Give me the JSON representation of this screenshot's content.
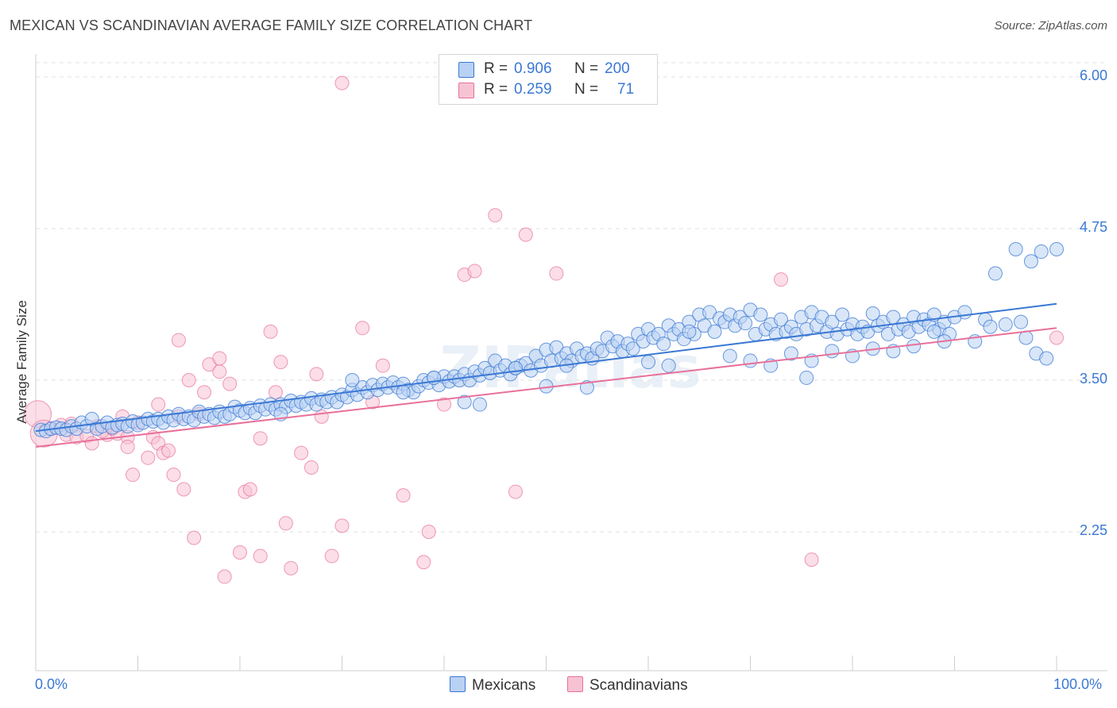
{
  "title": "MEXICAN VS SCANDINAVIAN AVERAGE FAMILY SIZE CORRELATION CHART",
  "source": "Source: ZipAtlas.com",
  "watermark": "ZIPatlas",
  "colors": {
    "blue": "#3a78d4",
    "blue_fill": "#b9d1f2",
    "pink": "#e8709a",
    "pink_fill": "#f7c3d3",
    "grid": "#dddddd"
  },
  "legend": {
    "rows": [
      {
        "r_label": "R =",
        "r_value": "0.906",
        "n_label": "N =",
        "n_value": "200"
      },
      {
        "r_label": "R =",
        "r_value": "0.259",
        "n_label": "N =",
        "n_value": "71"
      }
    ]
  },
  "bottom_legend": [
    "Mexicans",
    "Scandinavians"
  ],
  "chart_data": {
    "type": "scatter",
    "title": "MEXICAN VS SCANDINAVIAN AVERAGE FAMILY SIZE CORRELATION CHART",
    "xlabel": "",
    "ylabel": "Average Family Size",
    "x_tick_labels": [
      "0.0%",
      "100.0%"
    ],
    "y_tick_labels": [
      "6.00",
      "4.75",
      "3.50",
      "2.25"
    ],
    "y_ticks": [
      6.0,
      4.75,
      3.5,
      2.25
    ],
    "xlim": [
      0,
      100
    ],
    "ylim": [
      1.0,
      6.1
    ],
    "grid": true,
    "legend_position": "top-center",
    "series": [
      {
        "name": "Mexicans",
        "color": "#3a78d4",
        "trend": {
          "x": [
            0,
            100
          ],
          "y": [
            3.08,
            4.13
          ]
        },
        "points": [
          [
            0.5,
            3.09
          ],
          [
            1,
            3.08
          ],
          [
            1.5,
            3.1
          ],
          [
            2,
            3.11
          ],
          [
            2.5,
            3.1
          ],
          [
            3,
            3.09
          ],
          [
            3.5,
            3.12
          ],
          [
            4,
            3.1
          ],
          [
            4.5,
            3.15
          ],
          [
            5,
            3.12
          ],
          [
            5.5,
            3.18
          ],
          [
            6,
            3.1
          ],
          [
            6.5,
            3.12
          ],
          [
            7,
            3.15
          ],
          [
            7.5,
            3.11
          ],
          [
            8,
            3.13
          ],
          [
            8.5,
            3.14
          ],
          [
            9,
            3.12
          ],
          [
            9.5,
            3.16
          ],
          [
            10,
            3.13
          ],
          [
            10.5,
            3.15
          ],
          [
            11,
            3.18
          ],
          [
            11.5,
            3.16
          ],
          [
            12,
            3.18
          ],
          [
            12.5,
            3.15
          ],
          [
            13,
            3.2
          ],
          [
            13.5,
            3.17
          ],
          [
            14,
            3.22
          ],
          [
            14.5,
            3.18
          ],
          [
            15,
            3.2
          ],
          [
            15.5,
            3.17
          ],
          [
            16,
            3.24
          ],
          [
            16.5,
            3.2
          ],
          [
            17,
            3.22
          ],
          [
            17.5,
            3.19
          ],
          [
            18,
            3.24
          ],
          [
            18.5,
            3.2
          ],
          [
            19,
            3.22
          ],
          [
            19.5,
            3.28
          ],
          [
            20,
            3.25
          ],
          [
            20.5,
            3.23
          ],
          [
            21,
            3.27
          ],
          [
            21.5,
            3.23
          ],
          [
            22,
            3.29
          ],
          [
            22.5,
            3.26
          ],
          [
            23,
            3.3
          ],
          [
            23.5,
            3.26
          ],
          [
            24,
            3.3
          ],
          [
            24.5,
            3.28
          ],
          [
            25,
            3.33
          ],
          [
            25.5,
            3.29
          ],
          [
            26,
            3.32
          ],
          [
            26.5,
            3.3
          ],
          [
            27,
            3.35
          ],
          [
            27.5,
            3.3
          ],
          [
            28,
            3.34
          ],
          [
            28.5,
            3.32
          ],
          [
            29,
            3.36
          ],
          [
            29.5,
            3.32
          ],
          [
            30,
            3.38
          ],
          [
            30.5,
            3.36
          ],
          [
            31,
            3.42
          ],
          [
            31.5,
            3.38
          ],
          [
            32,
            3.44
          ],
          [
            32.5,
            3.4
          ],
          [
            33,
            3.46
          ],
          [
            33.5,
            3.42
          ],
          [
            34,
            3.47
          ],
          [
            34.5,
            3.44
          ],
          [
            35,
            3.48
          ],
          [
            35.5,
            3.44
          ],
          [
            36,
            3.47
          ],
          [
            36.5,
            3.42
          ],
          [
            37,
            3.4
          ],
          [
            37.5,
            3.45
          ],
          [
            38,
            3.5
          ],
          [
            38.5,
            3.48
          ],
          [
            39,
            3.52
          ],
          [
            39.5,
            3.46
          ],
          [
            40,
            3.53
          ],
          [
            40.5,
            3.49
          ],
          [
            41,
            3.53
          ],
          [
            41.5,
            3.5
          ],
          [
            42,
            3.55
          ],
          [
            42.5,
            3.5
          ],
          [
            43,
            3.57
          ],
          [
            43.5,
            3.54
          ],
          [
            44,
            3.6
          ],
          [
            44.5,
            3.56
          ],
          [
            45,
            3.66
          ],
          [
            45.5,
            3.58
          ],
          [
            46,
            3.62
          ],
          [
            46.5,
            3.55
          ],
          [
            47,
            3.6
          ],
          [
            47.5,
            3.62
          ],
          [
            48,
            3.64
          ],
          [
            48.5,
            3.58
          ],
          [
            49,
            3.7
          ],
          [
            49.5,
            3.62
          ],
          [
            50,
            3.75
          ],
          [
            50.5,
            3.66
          ],
          [
            51,
            3.77
          ],
          [
            51.5,
            3.68
          ],
          [
            52,
            3.72
          ],
          [
            52.5,
            3.66
          ],
          [
            53,
            3.76
          ],
          [
            53.5,
            3.7
          ],
          [
            54,
            3.72
          ],
          [
            54.5,
            3.68
          ],
          [
            55,
            3.76
          ],
          [
            55.5,
            3.74
          ],
          [
            56,
            3.85
          ],
          [
            56.5,
            3.78
          ],
          [
            57,
            3.82
          ],
          [
            57.5,
            3.74
          ],
          [
            58,
            3.8
          ],
          [
            58.5,
            3.76
          ],
          [
            59,
            3.88
          ],
          [
            59.5,
            3.82
          ],
          [
            60,
            3.92
          ],
          [
            60.5,
            3.85
          ],
          [
            61,
            3.88
          ],
          [
            61.5,
            3.8
          ],
          [
            62,
            3.95
          ],
          [
            62.5,
            3.88
          ],
          [
            63,
            3.92
          ],
          [
            63.5,
            3.84
          ],
          [
            64,
            3.98
          ],
          [
            64.5,
            3.88
          ],
          [
            65,
            4.04
          ],
          [
            65.5,
            3.95
          ],
          [
            66,
            4.06
          ],
          [
            66.5,
            3.9
          ],
          [
            67,
            4.01
          ],
          [
            67.5,
            3.98
          ],
          [
            68,
            4.04
          ],
          [
            68.5,
            3.95
          ],
          [
            69,
            4.02
          ],
          [
            69.5,
            3.97
          ],
          [
            70,
            4.08
          ],
          [
            70.5,
            3.88
          ],
          [
            71,
            4.04
          ],
          [
            71.5,
            3.92
          ],
          [
            72,
            3.96
          ],
          [
            72.5,
            3.88
          ],
          [
            73,
            4.0
          ],
          [
            73.5,
            3.9
          ],
          [
            74,
            3.94
          ],
          [
            74.5,
            3.88
          ],
          [
            75,
            4.02
          ],
          [
            75.5,
            3.92
          ],
          [
            76,
            4.06
          ],
          [
            76.5,
            3.95
          ],
          [
            77,
            4.02
          ],
          [
            77.5,
            3.9
          ],
          [
            78,
            3.98
          ],
          [
            78.5,
            3.88
          ],
          [
            79,
            4.04
          ],
          [
            79.5,
            3.92
          ],
          [
            80,
            3.96
          ],
          [
            80.5,
            3.88
          ],
          [
            81,
            3.94
          ],
          [
            81.5,
            3.9
          ],
          [
            82,
            4.05
          ],
          [
            82.5,
            3.95
          ],
          [
            83,
            3.98
          ],
          [
            83.5,
            3.88
          ],
          [
            84,
            4.02
          ],
          [
            84.5,
            3.92
          ],
          [
            85,
            3.96
          ],
          [
            85.5,
            3.9
          ],
          [
            86,
            4.02
          ],
          [
            86.5,
            3.94
          ],
          [
            87,
            4.0
          ],
          [
            87.5,
            3.96
          ],
          [
            88,
            4.04
          ],
          [
            88.5,
            3.92
          ],
          [
            89,
            3.98
          ],
          [
            89.5,
            3.88
          ],
          [
            90,
            4.02
          ],
          [
            50,
            3.45
          ],
          [
            52,
            3.62
          ],
          [
            54,
            3.44
          ],
          [
            47,
            3.6
          ],
          [
            36,
            3.4
          ],
          [
            31,
            3.5
          ],
          [
            24,
            3.22
          ],
          [
            39,
            3.52
          ],
          [
            42,
            3.32
          ],
          [
            43.5,
            3.3
          ],
          [
            60,
            3.65
          ],
          [
            62,
            3.62
          ],
          [
            64,
            3.9
          ],
          [
            68,
            3.7
          ],
          [
            70,
            3.66
          ],
          [
            72,
            3.62
          ],
          [
            74,
            3.72
          ],
          [
            76,
            3.66
          ],
          [
            78,
            3.74
          ],
          [
            80,
            3.7
          ],
          [
            82,
            3.76
          ],
          [
            84,
            3.74
          ],
          [
            86,
            3.78
          ],
          [
            88,
            3.9
          ],
          [
            93,
            4.0
          ],
          [
            95,
            3.96
          ],
          [
            97,
            3.85
          ],
          [
            98,
            3.72
          ],
          [
            99,
            3.68
          ],
          [
            92,
            3.82
          ],
          [
            94,
            4.38
          ],
          [
            96,
            4.58
          ],
          [
            97.5,
            4.48
          ],
          [
            100,
            4.58
          ],
          [
            98.5,
            4.56
          ],
          [
            91,
            4.06
          ],
          [
            93.5,
            3.94
          ],
          [
            96.5,
            3.98
          ],
          [
            75.5,
            3.52
          ],
          [
            89,
            3.82
          ]
        ]
      },
      {
        "name": "Scandinavians",
        "color": "#e8709a",
        "trend": {
          "x": [
            0,
            100
          ],
          "y": [
            2.95,
            3.93
          ]
        },
        "points": [
          [
            0.2,
            3.22
          ],
          [
            0.8,
            3.06
          ],
          [
            1.5,
            3.1
          ],
          [
            2.5,
            3.13
          ],
          [
            3,
            3.05
          ],
          [
            4,
            3.03
          ],
          [
            5,
            3.04
          ],
          [
            5.5,
            2.98
          ],
          [
            6,
            3.12
          ],
          [
            7,
            3.05
          ],
          [
            7.5,
            3.1
          ],
          [
            8,
            3.06
          ],
          [
            8.5,
            3.2
          ],
          [
            9,
            3.03
          ],
          [
            9.5,
            2.72
          ],
          [
            10,
            3.15
          ],
          [
            11,
            2.86
          ],
          [
            11.5,
            3.03
          ],
          [
            12,
            2.98
          ],
          [
            12.5,
            2.9
          ],
          [
            13,
            2.92
          ],
          [
            13.5,
            2.72
          ],
          [
            14,
            3.2
          ],
          [
            14.5,
            2.6
          ],
          [
            15,
            3.5
          ],
          [
            15.5,
            2.2
          ],
          [
            16,
            3.22
          ],
          [
            16.5,
            3.4
          ],
          [
            17,
            3.63
          ],
          [
            18,
            3.57
          ],
          [
            18.5,
            1.88
          ],
          [
            19,
            3.47
          ],
          [
            20,
            2.08
          ],
          [
            20.5,
            2.58
          ],
          [
            21,
            2.6
          ],
          [
            22,
            3.02
          ],
          [
            23,
            3.9
          ],
          [
            23.5,
            3.4
          ],
          [
            24,
            3.65
          ],
          [
            24.5,
            2.32
          ],
          [
            25,
            1.95
          ],
          [
            26,
            2.9
          ],
          [
            27,
            2.78
          ],
          [
            27.5,
            3.55
          ],
          [
            28,
            3.2
          ],
          [
            29,
            2.05
          ],
          [
            30,
            2.3
          ],
          [
            32,
            3.93
          ],
          [
            33,
            3.32
          ],
          [
            34,
            3.62
          ],
          [
            36,
            2.55
          ],
          [
            38,
            2.0
          ],
          [
            38.5,
            2.25
          ],
          [
            40,
            3.3
          ],
          [
            42,
            4.37
          ],
          [
            43,
            4.4
          ],
          [
            45,
            4.86
          ],
          [
            47,
            2.58
          ],
          [
            48,
            4.7
          ],
          [
            51,
            4.38
          ],
          [
            73,
            4.33
          ],
          [
            76,
            2.02
          ],
          [
            100,
            3.85
          ],
          [
            30,
            5.95
          ],
          [
            22,
            2.05
          ],
          [
            14,
            3.83
          ],
          [
            9,
            2.95
          ],
          [
            12,
            3.3
          ],
          [
            18,
            3.68
          ],
          [
            6.5,
            3.08
          ],
          [
            3.5,
            3.14
          ]
        ]
      }
    ]
  }
}
